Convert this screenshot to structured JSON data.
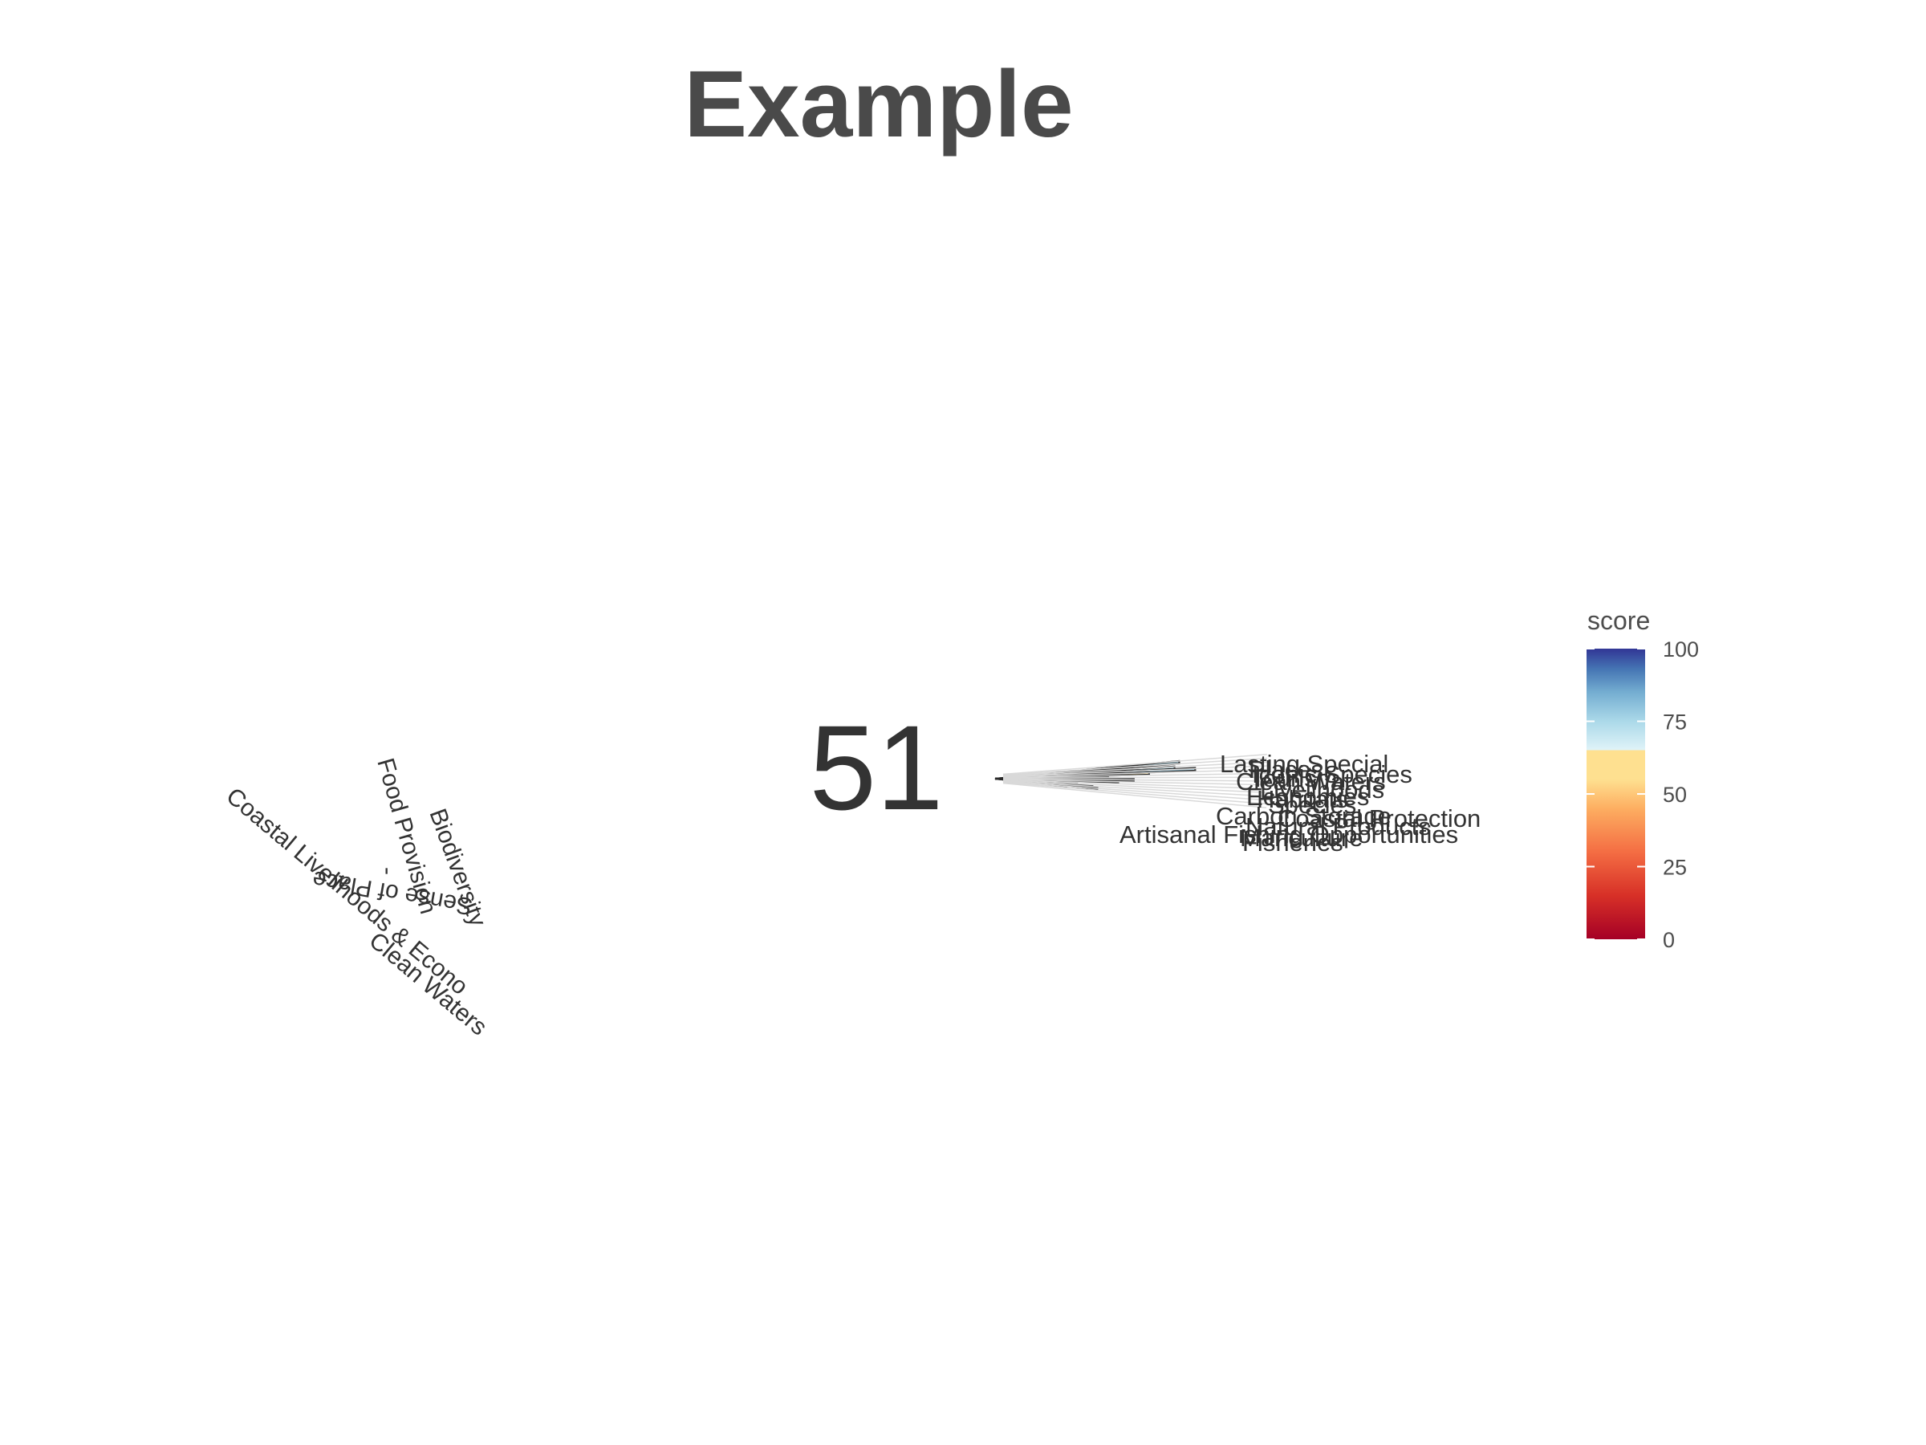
{
  "chart_data": {
    "type": "radial-bar",
    "title": "Example",
    "center_value": "51",
    "colorbar": {
      "title": "score",
      "min": 0,
      "max": 100,
      "ticks": [
        "0",
        "25",
        "50",
        "75",
        "100"
      ],
      "tick_values": [
        0,
        25,
        50,
        75,
        100
      ],
      "stops": [
        {
          "at": 0.0,
          "color": "#a50026"
        },
        {
          "at": 0.15,
          "color": "#d73027"
        },
        {
          "at": 0.3,
          "color": "#f46d43"
        },
        {
          "at": 0.45,
          "color": "#fdae61"
        },
        {
          "at": 0.55,
          "color": "#fee090"
        },
        {
          "at": 0.65,
          "color": "#fee090"
        },
        {
          "at": 0.65,
          "color": "#e0f3f8"
        },
        {
          "at": 0.75,
          "color": "#abd9e9"
        },
        {
          "at": 0.85,
          "color": "#74add1"
        },
        {
          "at": 0.93,
          "color": "#4575b4"
        },
        {
          "at": 1.0,
          "color": "#313695"
        }
      ]
    },
    "goals": [
      {
        "label": "Coastal Livelihoods & Economies",
        "shown": "Coastal Livelihoods & Econo"
      },
      {
        "label": "Biodiversity",
        "shown": "Biodiversity"
      },
      {
        "label": "Food Provision",
        "shown": "Food Provision"
      },
      {
        "label": "Sense of Place",
        "shown": "Sense of Place"
      },
      {
        "label": "-",
        "shown": "-"
      },
      {
        "label": "Clean Waters",
        "shown": "Clean Waters"
      }
    ],
    "categories": [
      "Lasting Special",
      "Places",
      "Iconic Species",
      "Clean Waters",
      "Tourism",
      "Livelihoods",
      "Economies",
      "Habitats",
      "Species",
      "Carbon Storage",
      "Coastal Protection",
      "Natural Products",
      "Artisanal Fishing Opportunities",
      "Mariculture",
      "Fisheries"
    ],
    "values": [
      72,
      38,
      70,
      78,
      60,
      44,
      30,
      54,
      48,
      20,
      26,
      32,
      38,
      40,
      28
    ]
  }
}
